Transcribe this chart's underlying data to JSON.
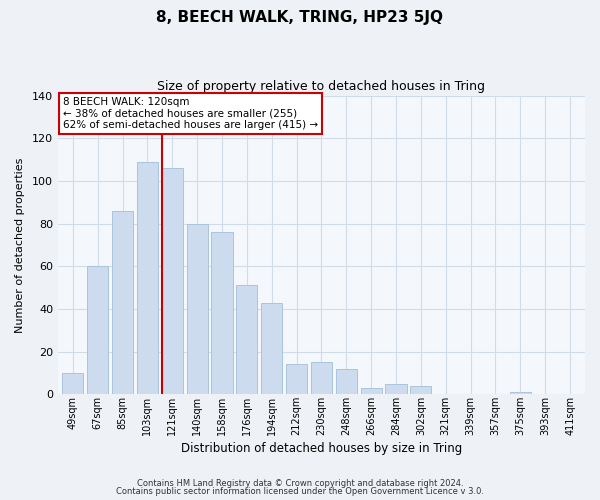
{
  "title": "8, BEECH WALK, TRING, HP23 5JQ",
  "subtitle": "Size of property relative to detached houses in Tring",
  "xlabel": "Distribution of detached houses by size in Tring",
  "ylabel": "Number of detached properties",
  "bar_labels": [
    "49sqm",
    "67sqm",
    "85sqm",
    "103sqm",
    "121sqm",
    "140sqm",
    "158sqm",
    "176sqm",
    "194sqm",
    "212sqm",
    "230sqm",
    "248sqm",
    "266sqm",
    "284sqm",
    "302sqm",
    "321sqm",
    "339sqm",
    "357sqm",
    "375sqm",
    "393sqm",
    "411sqm"
  ],
  "bar_values": [
    10,
    60,
    86,
    109,
    106,
    80,
    76,
    51,
    43,
    14,
    15,
    12,
    3,
    5,
    4,
    0,
    0,
    0,
    1,
    0,
    0
  ],
  "bar_color": "#ccdcee",
  "bar_edge_color": "#aac4de",
  "highlight_index": 4,
  "highlight_line_color": "#cc0000",
  "ylim": [
    0,
    140
  ],
  "yticks": [
    0,
    20,
    40,
    60,
    80,
    100,
    120,
    140
  ],
  "annotation_title": "8 BEECH WALK: 120sqm",
  "annotation_line1": "← 38% of detached houses are smaller (255)",
  "annotation_line2": "62% of semi-detached houses are larger (415) →",
  "footer1": "Contains HM Land Registry data © Crown copyright and database right 2024.",
  "footer2": "Contains public sector information licensed under the Open Government Licence v 3.0.",
  "background_color": "#eef2f7",
  "plot_bg_color": "#f4f8fc",
  "grid_color": "#d0dce8"
}
